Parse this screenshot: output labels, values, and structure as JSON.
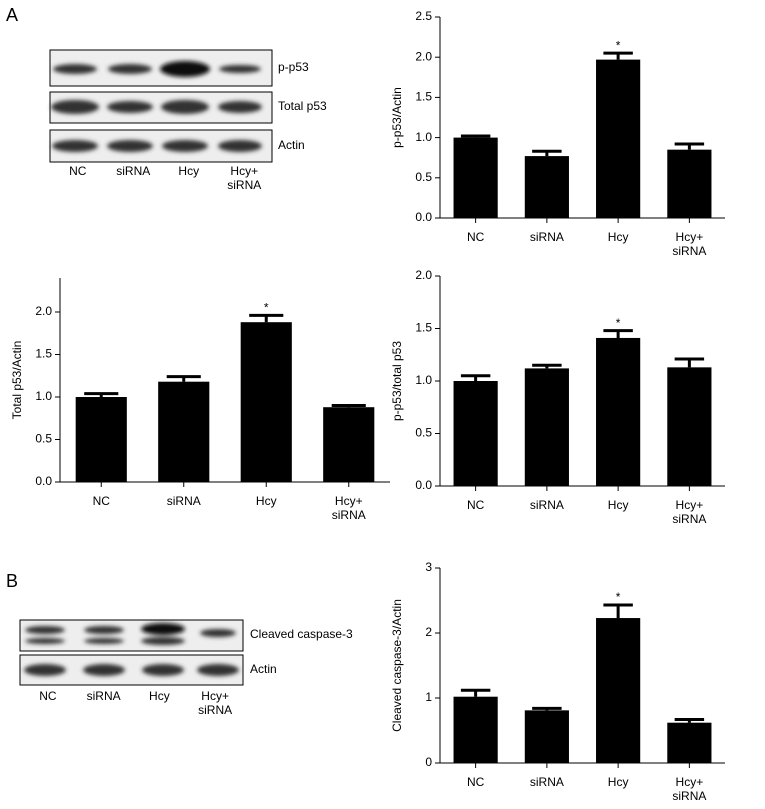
{
  "panels": [
    "A",
    "B"
  ],
  "blots": [
    {
      "bands": [
        "p-p53",
        "Total p53",
        "Actin"
      ],
      "lanes": [
        "NC",
        "siRNA",
        "Hcy",
        "Hcy+\nsiRNA"
      ]
    },
    {
      "bands": [
        "Cleaved caspase-3",
        "Actin"
      ],
      "lanes": [
        "NC",
        "siRNA",
        "Hcy",
        "Hcy+\nsiRNA"
      ]
    }
  ],
  "chart_data": [
    {
      "type": "bar",
      "y_label": "p-p53/Actin",
      "categories": [
        "NC",
        "siRNA",
        "Hcy",
        "Hcy+\nsiRNA"
      ],
      "values": [
        1.0,
        0.77,
        1.97,
        0.85
      ],
      "errors": [
        0.02,
        0.06,
        0.08,
        0.07
      ],
      "color": "#000000",
      "ylim": [
        0,
        2.5
      ],
      "yticks": [
        {
          "value": 0,
          "label": "0.0"
        },
        0.5,
        {
          "value": 1,
          "label": "1.0"
        },
        1.5,
        {
          "value": 2,
          "label": "2.0"
        },
        2.5
      ],
      "annotations": [
        {
          "text": "*",
          "index": 2
        }
      ]
    },
    {
      "type": "bar",
      "y_label": "Total p53/Actin",
      "categories": [
        "NC",
        "siRNA",
        "Hcy",
        "Hcy+\nsiRNA"
      ],
      "values": [
        1.0,
        1.18,
        1.88,
        0.88
      ],
      "errors": [
        0.04,
        0.06,
        0.08,
        0.02
      ],
      "color": "#000000",
      "ylim": [
        0,
        2.4
      ],
      "yticks": [
        {
          "value": 0,
          "label": "0.0"
        },
        0.5,
        {
          "value": 1,
          "label": "1.0"
        },
        1.5,
        {
          "value": 2,
          "label": "2.0"
        }
      ],
      "annotations": [
        {
          "text": "*",
          "index": 2
        }
      ]
    },
    {
      "type": "bar",
      "y_label": "p-p53/total p53",
      "categories": [
        "NC",
        "siRNA",
        "Hcy",
        "Hcy+\nsiRNA"
      ],
      "values": [
        1.0,
        1.12,
        1.41,
        1.13
      ],
      "errors": [
        0.05,
        0.03,
        0.07,
        0.08
      ],
      "color": "#000000",
      "ylim": [
        0,
        2
      ],
      "yticks": [
        {
          "value": 0,
          "label": "0.0"
        },
        0.5,
        {
          "value": 1,
          "label": "1.0"
        },
        1.5,
        {
          "value": 2,
          "label": "2.0"
        }
      ],
      "annotations": [
        {
          "text": "*",
          "index": 2
        }
      ]
    },
    {
      "type": "bar",
      "y_label": "Cleaved caspase-3/Actin",
      "categories": [
        "NC",
        "siRNA",
        "Hcy",
        "Hcy+\nsiRNA"
      ],
      "values": [
        1.02,
        0.81,
        2.23,
        0.62
      ],
      "errors": [
        0.1,
        0.03,
        0.2,
        0.05
      ],
      "color": "#000000",
      "ylim": [
        0,
        3
      ],
      "yticks": [
        0,
        1,
        2,
        3
      ],
      "annotations": [
        {
          "text": "*",
          "index": 2
        }
      ]
    }
  ]
}
